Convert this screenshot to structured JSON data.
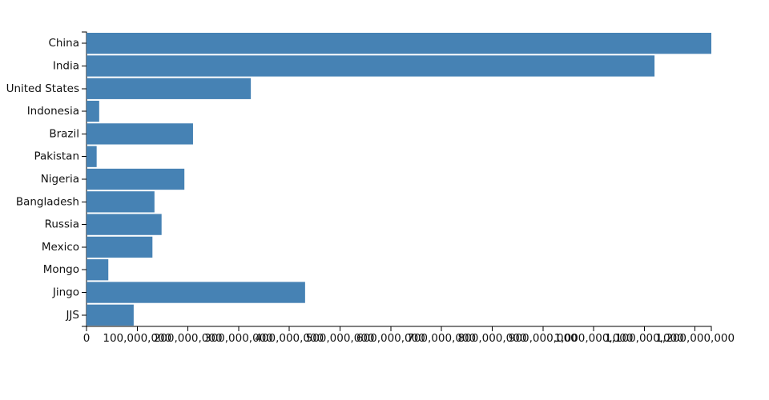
{
  "chart_data": {
    "type": "bar",
    "orientation": "horizontal",
    "color": "#4682b4",
    "categories": [
      "China",
      "India",
      "United States",
      "Indonesia",
      "Brazil",
      "Pakistan",
      "Nigeria",
      "Bangladesh",
      "Russia",
      "Mexico",
      "Mongo",
      "Jingo",
      "JJS"
    ],
    "values": [
      1232000000,
      1120000000,
      324000000,
      25000000,
      210000000,
      20000000,
      193000000,
      134000000,
      148000000,
      130000000,
      43000000,
      431000000,
      93000000
    ],
    "xlim": [
      0,
      1232000000
    ],
    "xticks": [
      0,
      {
        "value": 100000000,
        "label": "100,000,000"
      },
      {
        "value": 200000000,
        "label": "200,000,000"
      },
      {
        "value": 300000000,
        "label": "300,000,000"
      },
      {
        "value": 400000000,
        "label": "400,000,000"
      },
      {
        "value": 500000000,
        "label": "500,000,000"
      },
      {
        "value": 600000000,
        "label": "600,000,000"
      },
      {
        "value": 700000000,
        "label": "700,000,000"
      },
      {
        "value": 800000000,
        "label": "800,000,000"
      },
      {
        "value": 900000000,
        "label": "900,000,000"
      },
      {
        "value": 1000000000,
        "label": "1,000,000,000"
      },
      {
        "value": 1100000000,
        "label": "1,100,000,000"
      },
      {
        "value": 1200000000,
        "label": "1,200,000,000"
      }
    ]
  }
}
